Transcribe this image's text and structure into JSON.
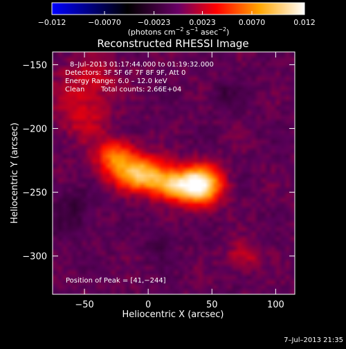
{
  "chart_data": {
    "type": "heatmap",
    "title": "Reconstructed RHESSI Image",
    "xlabel": "Heliocentric X (arcsec)",
    "ylabel": "Heliocentric Y (arcsec)",
    "xlim": [
      -75,
      115
    ],
    "ylim": [
      -330,
      -140
    ],
    "x_ticks": [
      -50,
      0,
      50,
      100
    ],
    "x_tick_labels": [
      "−50",
      "0",
      "50",
      "100"
    ],
    "y_ticks": [
      -150,
      -200,
      -250,
      -300
    ],
    "y_tick_labels": [
      "−150",
      "−200",
      "−250",
      "−300"
    ],
    "colorbar": {
      "range": [
        -0.012,
        0.012
      ],
      "ticks": [
        -0.012,
        -0.007,
        -0.0023,
        0.0023,
        0.007,
        0.012
      ],
      "tick_labels": [
        "−0.012",
        "−0.0070",
        "−0.0023",
        "0.0023",
        "0.0070",
        "0.012"
      ],
      "unit_label": {
        "prefix": "(photons cm",
        "exp1": "−2",
        "mid1": " s",
        "exp2": "−1",
        "mid2": " asec",
        "exp3": "−2",
        "suffix": ")"
      },
      "colormap": [
        "#0000ff",
        "#000000",
        "#7a0070",
        "#ff0000",
        "#ffa500",
        "#ffffff"
      ]
    },
    "annotations": {
      "time_range": "8–Jul–2013 01:17:44.000 to 01:19:32.000",
      "detectors": "Detectors: 3F 5F 6F 7F 8F 9F, Att 0",
      "energy_range": "Energy Range: 6.0 – 12.0 keV",
      "clean": "Clean",
      "total_counts": "Total counts: 2.66E+04",
      "peak_position": "Position of Peak = [41,−244]"
    },
    "sources": [
      {
        "x": 41,
        "y": -244,
        "sx": 11,
        "sy": 10,
        "amp": 1.0
      },
      {
        "x": 20,
        "y": -245,
        "sx": 12,
        "sy": 8,
        "amp": 0.6
      },
      {
        "x": -5,
        "y": -236,
        "sx": 15,
        "sy": 9,
        "amp": 0.75
      },
      {
        "x": -25,
        "y": -222,
        "sx": 11,
        "sy": 9,
        "amp": 0.5
      },
      {
        "x": -52,
        "y": -190,
        "sx": 14,
        "sy": 14,
        "amp": 0.22
      },
      {
        "x": -45,
        "y": -160,
        "sx": 18,
        "sy": 12,
        "amp": 0.18
      },
      {
        "x": 60,
        "y": -175,
        "sx": 8,
        "sy": 8,
        "amp": -0.12
      },
      {
        "x": -60,
        "y": -265,
        "sx": 10,
        "sy": 12,
        "amp": -0.15
      },
      {
        "x": 75,
        "y": -300,
        "sx": 10,
        "sy": 8,
        "amp": 0.2
      },
      {
        "x": 10,
        "y": -290,
        "sx": 8,
        "sy": 10,
        "amp": -0.1
      }
    ]
  },
  "footer": {
    "timestamp": "7–Jul–2013 21:35"
  }
}
